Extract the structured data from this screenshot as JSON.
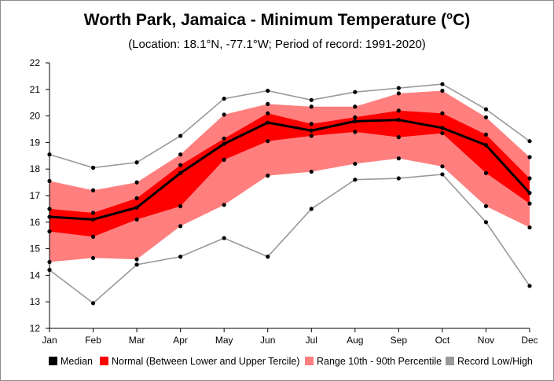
{
  "chart_data": {
    "type": "area",
    "title_main": "Worth Park, Jamaica - Minimum Temperature (",
    "title_unit_sup": "o",
    "title_unit_rest": "C)",
    "subtitle": "(Location: 18.1°N, -77.1°W; Period of record: 1991-2020)",
    "categories": [
      "Jan",
      "Feb",
      "Mar",
      "Apr",
      "May",
      "Jun",
      "Jul",
      "Aug",
      "Sep",
      "Oct",
      "Nov",
      "Dec"
    ],
    "ylim": [
      12,
      22
    ],
    "yticks": [
      "12",
      "13",
      "14",
      "15",
      "16",
      "17",
      "18",
      "19",
      "20",
      "21",
      "22"
    ],
    "grid": false,
    "legend_position": "bottom",
    "series": [
      {
        "name": "Record Low/High",
        "role": "record",
        "color": "#999999",
        "low": [
          14.2,
          12.95,
          14.4,
          14.7,
          15.4,
          14.7,
          16.5,
          17.6,
          17.65,
          17.8,
          16.0,
          13.6
        ],
        "high": [
          18.55,
          18.05,
          18.25,
          19.25,
          20.65,
          20.95,
          20.6,
          20.9,
          21.05,
          21.2,
          20.25,
          19.05
        ]
      },
      {
        "name": "Range 10th - 90th Percentile",
        "role": "p10_90",
        "color": "#ff7f7f",
        "low": [
          14.5,
          14.65,
          14.6,
          15.85,
          16.65,
          17.75,
          17.9,
          18.2,
          18.4,
          18.1,
          16.6,
          15.8
        ],
        "high": [
          17.55,
          17.2,
          17.5,
          18.55,
          20.05,
          20.45,
          20.35,
          20.35,
          20.85,
          20.95,
          19.95,
          18.45
        ]
      },
      {
        "name": "Normal (Between Lower and Upper Tercile)",
        "role": "tercile",
        "color": "#ff0000",
        "low": [
          15.65,
          15.45,
          16.1,
          16.6,
          18.35,
          19.05,
          19.25,
          19.4,
          19.2,
          19.35,
          17.85,
          16.7
        ],
        "high": [
          16.5,
          16.35,
          16.9,
          18.15,
          19.15,
          20.1,
          19.7,
          19.95,
          20.2,
          20.1,
          19.3,
          17.65
        ]
      },
      {
        "name": "Median",
        "role": "median",
        "color": "#000000",
        "values": [
          16.2,
          16.1,
          16.55,
          17.85,
          18.95,
          19.75,
          19.45,
          19.8,
          19.85,
          19.55,
          18.9,
          17.1
        ]
      }
    ],
    "legend_order": [
      "Median",
      "Normal (Between Lower and Upper Tercile)",
      "Range 10th - 90th Percentile",
      "Record Low/High"
    ]
  }
}
